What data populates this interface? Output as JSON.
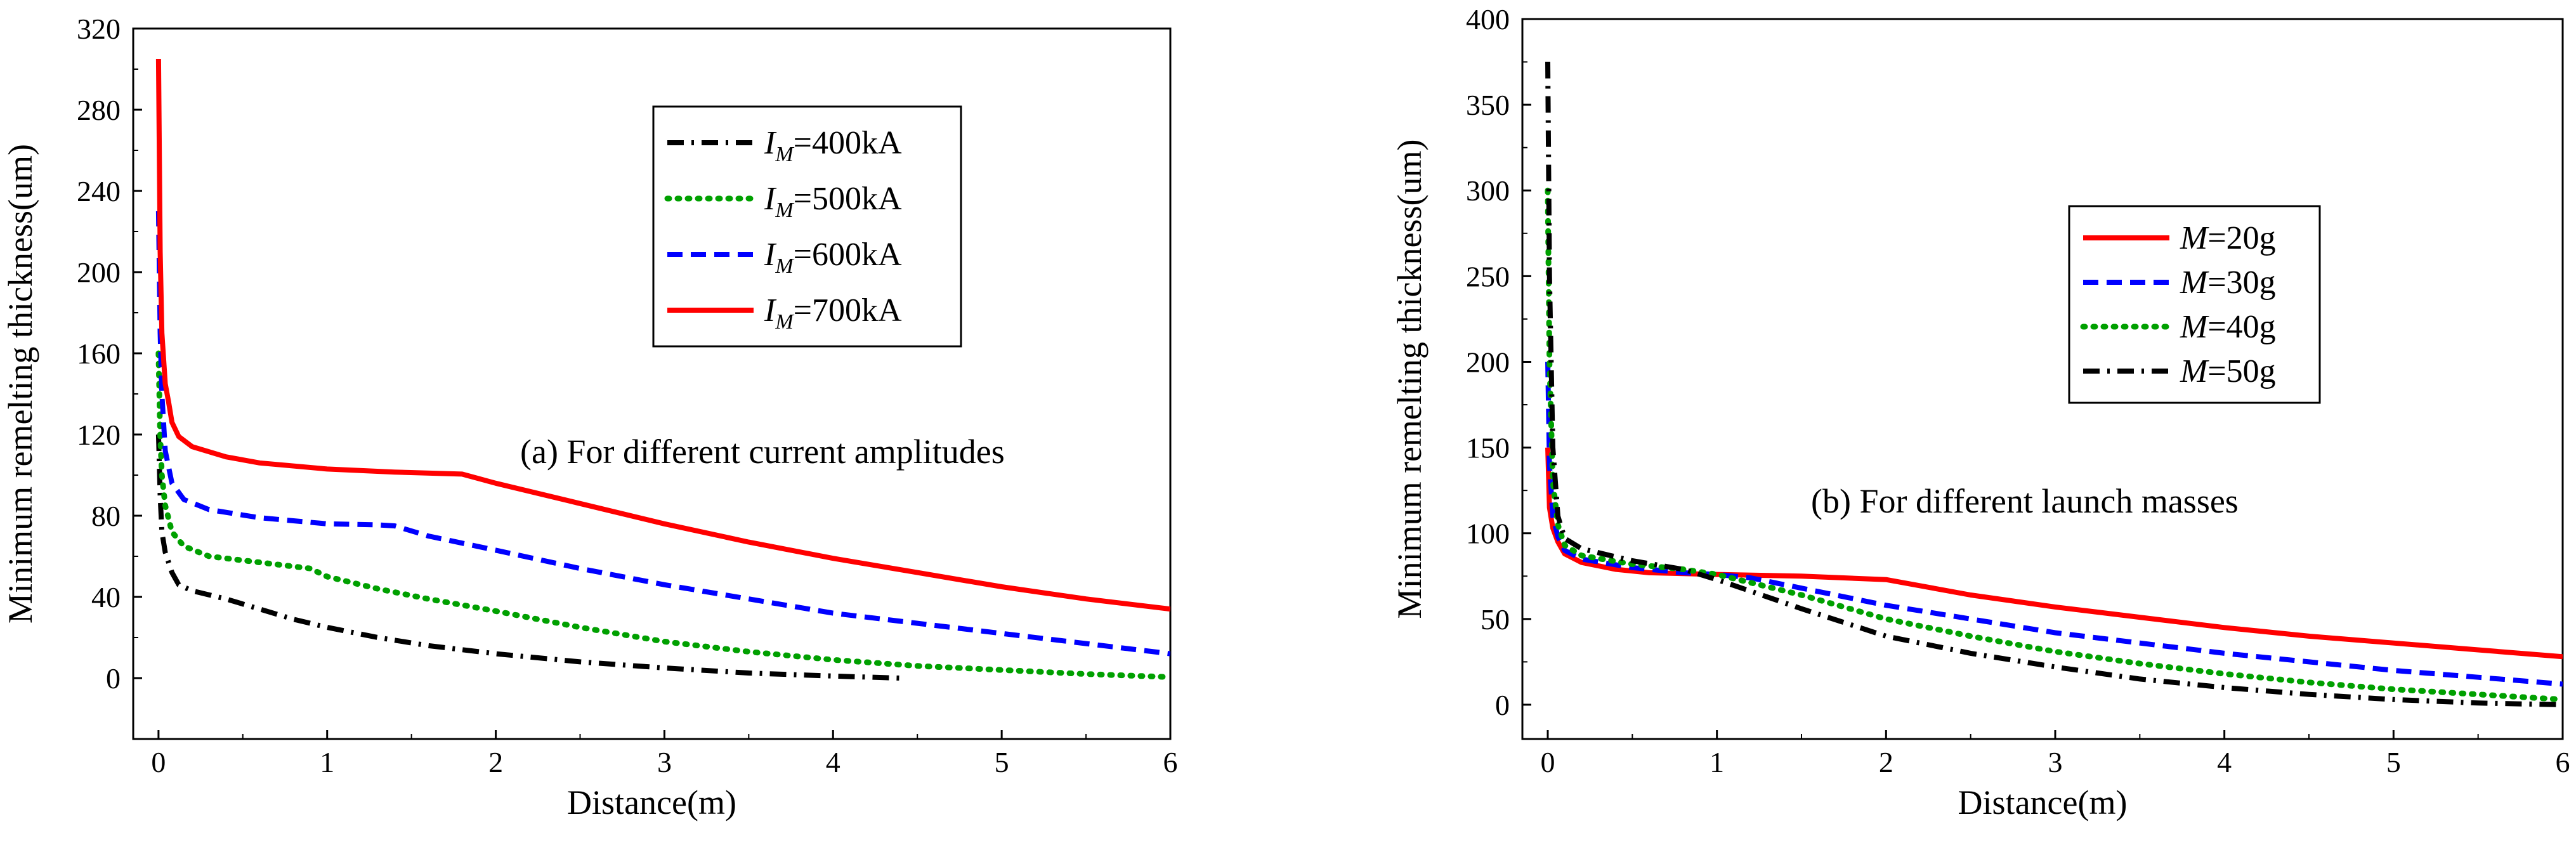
{
  "chart_data": [
    {
      "type": "line",
      "annotation": "(a) For different current amplitudes",
      "xlabel": "Distance(m)",
      "ylabel": "Minimum remelting thickness(um)",
      "xlim": [
        -0.15,
        6
      ],
      "ylim": [
        -30,
        320
      ],
      "xticks": [
        0,
        1,
        2,
        3,
        4,
        5,
        6
      ],
      "yticks": [
        0,
        40,
        80,
        120,
        160,
        200,
        240,
        280,
        320
      ],
      "grid": false,
      "legend_position": "top-right",
      "series": [
        {
          "legend_symbol": "I",
          "legend_subscript": "M",
          "legend_value": "=400kA",
          "color": "#000000",
          "dash": "dashdot",
          "points": [
            [
              0,
              120
            ],
            [
              0.01,
              90
            ],
            [
              0.02,
              72
            ],
            [
              0.04,
              62
            ],
            [
              0.08,
              52
            ],
            [
              0.12,
              46
            ],
            [
              0.2,
              43
            ],
            [
              0.4,
              39
            ],
            [
              0.6,
              34
            ],
            [
              0.8,
              29
            ],
            [
              1.0,
              25
            ],
            [
              1.3,
              20
            ],
            [
              1.6,
              16
            ],
            [
              2.0,
              12
            ],
            [
              2.5,
              8
            ],
            [
              3.0,
              5
            ],
            [
              3.5,
              2.5
            ],
            [
              4.0,
              1
            ],
            [
              4.4,
              0
            ]
          ]
        },
        {
          "legend_symbol": "I",
          "legend_subscript": "M",
          "legend_value": "=500kA",
          "color": "#00a000",
          "dash": "dotted",
          "points": [
            [
              0,
              160
            ],
            [
              0.01,
              120
            ],
            [
              0.02,
              100
            ],
            [
              0.04,
              85
            ],
            [
              0.08,
              72
            ],
            [
              0.15,
              65
            ],
            [
              0.3,
              60
            ],
            [
              0.6,
              57
            ],
            [
              0.8,
              55
            ],
            [
              0.9,
              54
            ],
            [
              1.0,
              50
            ],
            [
              1.3,
              44
            ],
            [
              1.6,
              39
            ],
            [
              2.0,
              33
            ],
            [
              2.5,
              25
            ],
            [
              3.0,
              18
            ],
            [
              3.5,
              13
            ],
            [
              4.0,
              9
            ],
            [
              4.5,
              6
            ],
            [
              5.0,
              4
            ],
            [
              5.5,
              2
            ],
            [
              6.0,
              0.5
            ]
          ]
        },
        {
          "legend_symbol": "I",
          "legend_subscript": "M",
          "legend_value": "=600kA",
          "color": "#0000ff",
          "dash": "dashed",
          "points": [
            [
              0,
              230
            ],
            [
              0.01,
              170
            ],
            [
              0.02,
              140
            ],
            [
              0.04,
              112
            ],
            [
              0.08,
              96
            ],
            [
              0.15,
              88
            ],
            [
              0.3,
              83
            ],
            [
              0.6,
              79
            ],
            [
              1.0,
              76
            ],
            [
              1.3,
              75.5
            ],
            [
              1.4,
              75
            ],
            [
              1.6,
              70
            ],
            [
              2.0,
              63
            ],
            [
              2.5,
              54
            ],
            [
              3.0,
              46
            ],
            [
              3.5,
              39
            ],
            [
              4.0,
              32
            ],
            [
              4.5,
              27
            ],
            [
              5.0,
              22
            ],
            [
              5.5,
              17
            ],
            [
              6.0,
              12
            ]
          ]
        },
        {
          "legend_symbol": "I",
          "legend_subscript": "M",
          "legend_value": "=700kA",
          "color": "#ff0000",
          "dash": "solid",
          "points": [
            [
              0,
              305
            ],
            [
              0.01,
              210
            ],
            [
              0.02,
              170
            ],
            [
              0.04,
              145
            ],
            [
              0.06,
              136
            ],
            [
              0.08,
              126
            ],
            [
              0.12,
              119
            ],
            [
              0.2,
              114
            ],
            [
              0.4,
              109
            ],
            [
              0.6,
              106
            ],
            [
              1.0,
              103
            ],
            [
              1.4,
              101.5
            ],
            [
              1.8,
              100.5
            ],
            [
              2.0,
              96
            ],
            [
              2.5,
              86
            ],
            [
              3.0,
              76
            ],
            [
              3.5,
              67
            ],
            [
              4.0,
              59
            ],
            [
              4.5,
              52
            ],
            [
              5.0,
              45
            ],
            [
              5.5,
              39
            ],
            [
              6.0,
              34
            ]
          ]
        }
      ]
    },
    {
      "type": "line",
      "annotation": "(b) For different launch masses",
      "xlabel": "Distance(m)",
      "ylabel": "Minimum remelting thickness(um)",
      "xlim": [
        -0.15,
        6
      ],
      "ylim": [
        -20,
        400
      ],
      "xticks": [
        0,
        1,
        2,
        3,
        4,
        5,
        6
      ],
      "yticks": [
        0,
        50,
        100,
        150,
        200,
        250,
        300,
        350,
        400
      ],
      "grid": false,
      "legend_position": "upper-right",
      "series": [
        {
          "legend_symbol": "M",
          "legend_value": "=20g",
          "color": "#ff0000",
          "dash": "solid",
          "points": [
            [
              0,
              150
            ],
            [
              0.01,
              115
            ],
            [
              0.03,
              103
            ],
            [
              0.06,
              95
            ],
            [
              0.1,
              88
            ],
            [
              0.2,
              83
            ],
            [
              0.4,
              79
            ],
            [
              0.6,
              77
            ],
            [
              1.0,
              76
            ],
            [
              1.5,
              75
            ],
            [
              2.0,
              73
            ],
            [
              2.5,
              64
            ],
            [
              3.0,
              57
            ],
            [
              3.5,
              51
            ],
            [
              4.0,
              45
            ],
            [
              4.5,
              40
            ],
            [
              5.0,
              36
            ],
            [
              5.5,
              32
            ],
            [
              6.0,
              28
            ]
          ]
        },
        {
          "legend_symbol": "M",
          "legend_value": "=30g",
          "color": "#0000ff",
          "dash": "dashed",
          "points": [
            [
              0,
              200
            ],
            [
              0.01,
              140
            ],
            [
              0.03,
              110
            ],
            [
              0.06,
              98
            ],
            [
              0.1,
              90
            ],
            [
              0.2,
              85
            ],
            [
              0.5,
              80
            ],
            [
              0.8,
              77
            ],
            [
              1.0,
              76
            ],
            [
              1.2,
              74
            ],
            [
              1.5,
              68
            ],
            [
              2.0,
              58
            ],
            [
              2.5,
              50
            ],
            [
              3.0,
              42
            ],
            [
              3.5,
              36
            ],
            [
              4.0,
              30
            ],
            [
              4.5,
              25
            ],
            [
              5.0,
              20
            ],
            [
              5.5,
              16
            ],
            [
              6.0,
              12
            ]
          ]
        },
        {
          "legend_symbol": "M",
          "legend_value": "=40g",
          "color": "#00a000",
          "dash": "dotted",
          "points": [
            [
              0,
              300
            ],
            [
              0.01,
              200
            ],
            [
              0.03,
              130
            ],
            [
              0.06,
              105
            ],
            [
              0.1,
              93
            ],
            [
              0.2,
              87
            ],
            [
              0.5,
              82
            ],
            [
              0.8,
              79
            ],
            [
              1.0,
              76
            ],
            [
              1.5,
              64
            ],
            [
              2.0,
              50
            ],
            [
              2.5,
              40
            ],
            [
              3.0,
              31
            ],
            [
              3.5,
              24
            ],
            [
              4.0,
              18
            ],
            [
              4.5,
              13
            ],
            [
              5.0,
              9
            ],
            [
              5.5,
              6
            ],
            [
              6.0,
              3
            ]
          ]
        },
        {
          "legend_symbol": "M",
          "legend_value": "=50g",
          "color": "#000000",
          "dash": "dashdot",
          "points": [
            [
              0,
              375
            ],
            [
              0.01,
              250
            ],
            [
              0.03,
              150
            ],
            [
              0.06,
              110
            ],
            [
              0.1,
              97
            ],
            [
              0.2,
              91
            ],
            [
              0.5,
              84
            ],
            [
              0.8,
              79
            ],
            [
              1.0,
              73
            ],
            [
              1.5,
              56
            ],
            [
              2.0,
              40
            ],
            [
              2.5,
              30
            ],
            [
              3.0,
              22
            ],
            [
              3.5,
              15
            ],
            [
              4.0,
              10
            ],
            [
              4.5,
              6
            ],
            [
              5.0,
              3
            ],
            [
              5.5,
              1
            ],
            [
              6.0,
              0
            ]
          ]
        }
      ]
    }
  ]
}
